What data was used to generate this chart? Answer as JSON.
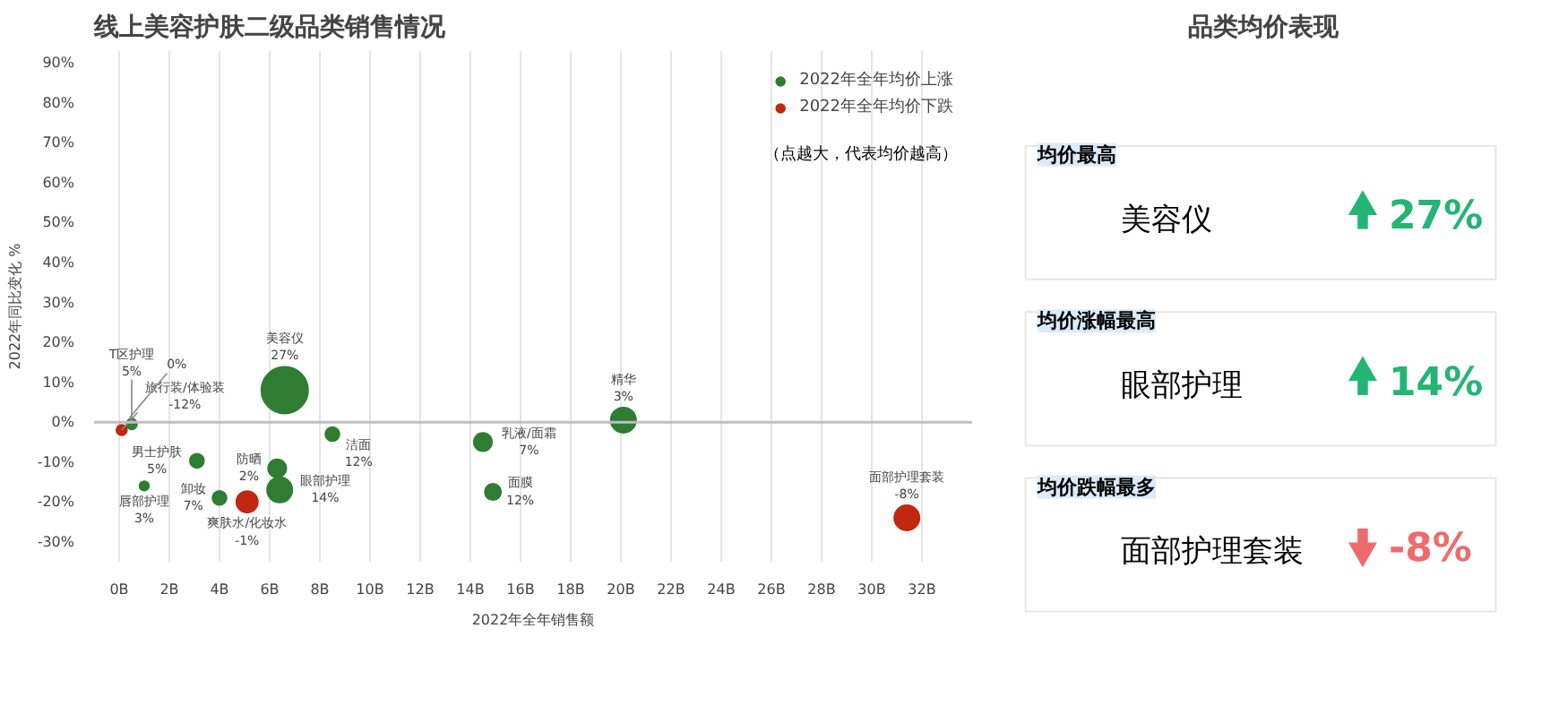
{
  "chart_data": [
    {
      "type": "bubble",
      "title": "线上美容护肤二级品类销售情况",
      "xlabel": "2022年全年销售额",
      "ylabel": "2022年同比变化 %",
      "xlim": [
        -1,
        34
      ],
      "ylim": [
        -35,
        93
      ],
      "xticks": [
        {
          "value": 0,
          "label": "0B"
        },
        {
          "value": 2,
          "label": "2B"
        },
        {
          "value": 4,
          "label": "4B"
        },
        {
          "value": 6,
          "label": "6B"
        },
        {
          "value": 8,
          "label": "8B"
        },
        {
          "value": 10,
          "label": "10B"
        },
        {
          "value": 12,
          "label": "12B"
        },
        {
          "value": 14,
          "label": "14B"
        },
        {
          "value": 16,
          "label": "16B"
        },
        {
          "value": 18,
          "label": "18B"
        },
        {
          "value": 20,
          "label": "20B"
        },
        {
          "value": 22,
          "label": "22B"
        },
        {
          "value": 24,
          "label": "24B"
        },
        {
          "value": 26,
          "label": "26B"
        },
        {
          "value": 28,
          "label": "28B"
        },
        {
          "value": 30,
          "label": "30B"
        },
        {
          "value": 32,
          "label": "32B"
        }
      ],
      "yticks": [
        {
          "value": -30,
          "label": "-30%"
        },
        {
          "value": -20,
          "label": "-20%"
        },
        {
          "value": -10,
          "label": "-10%"
        },
        {
          "value": 0,
          "label": "0%"
        },
        {
          "value": 10,
          "label": "10%"
        },
        {
          "value": 20,
          "label": "20%"
        },
        {
          "value": 30,
          "label": "30%"
        },
        {
          "value": 40,
          "label": "40%"
        },
        {
          "value": 50,
          "label": "50%"
        },
        {
          "value": 60,
          "label": "60%"
        },
        {
          "value": 70,
          "label": "70%"
        },
        {
          "value": 80,
          "label": "80%"
        },
        {
          "value": 90,
          "label": "90%"
        }
      ],
      "grid": "x",
      "legend": "top right",
      "ref_lines": [
        {
          "axis": "y",
          "value": 0,
          "color": "#bfbfbf"
        }
      ],
      "annotations": [
        "（点越大，代表均价越高）",
        {
          "text": "美容仪\n27%",
          "x": 6.6,
          "y": 8
        },
        {
          "text": "精华\n3%",
          "x": 20.1,
          "y": 0.5
        },
        {
          "text": "眼部护理\n14%",
          "x": 6.4,
          "y": -17
        },
        {
          "text": "面部护理套装\n-8%",
          "x": 31.4,
          "y": -24
        },
        {
          "text": "爽肤水/化妆水\n-1%",
          "x": 5.1,
          "y": -20
        },
        {
          "text": "乳液/面霜\n7%",
          "x": 14.5,
          "y": -5
        },
        {
          "text": "防晒\n2%",
          "x": 6.3,
          "y": -11.6
        },
        {
          "text": "面膜\n12%",
          "x": 14.9,
          "y": -17.5
        },
        {
          "text": "男士护肤\n5%",
          "x": 3.1,
          "y": -9.7
        },
        {
          "text": "卸妆\n7%",
          "x": 4.0,
          "y": -19
        },
        {
          "text": "洁面\n12%",
          "x": 8.5,
          "y": -3
        },
        {
          "text": "旅行装/体验装\n-12%",
          "x": 0.1,
          "y": -2
        },
        {
          "text": "T区护理\n5%",
          "x": 0.5,
          "y": -0.5
        },
        {
          "text": "0%",
          "x": 0.4,
          "y": 1
        },
        {
          "text": "唇部护理\n3%",
          "x": 1.0,
          "y": -16
        }
      ],
      "series": [
        {
          "name": "2022年全年均价上涨",
          "color": "#2e7d32",
          "x": [
            0.5,
            3.1,
            1.0,
            4.0,
            6.6,
            6.3,
            6.4,
            8.5,
            14.5,
            14.9,
            20.1
          ],
          "values": [
            -0.5,
            -9.7,
            -16,
            -19,
            8,
            -11.6,
            -17,
            -3,
            -5,
            -17.5,
            0.5
          ],
          "sizes": [
            0.05,
            0.09,
            0.04,
            0.09,
            1,
            0.15,
            0.29,
            0.09,
            0.15,
            0.12,
            0.29
          ]
        },
        {
          "name": "2022年全年均价下跌",
          "color": "#c0280f",
          "x": [
            0.1,
            5.1,
            31.4
          ],
          "values": [
            -2,
            -20,
            -24
          ],
          "sizes": [
            0.05,
            0.21,
            0.29
          ]
        }
      ]
    },
    {
      "type": "other",
      "title": "品类均价表现",
      "annotations": [
        "均价最高",
        "均价涨幅最高",
        "均价跌幅最多"
      ],
      "categories": [
        "美容仪",
        "眼部护理",
        "面部护理套装"
      ],
      "values": [
        27,
        14,
        -8
      ],
      "value_labels": [
        "27%",
        "14%",
        "-8%"
      ],
      "colors": [
        "#22b573",
        "#22b573",
        "#ef6b6b"
      ]
    }
  ]
}
